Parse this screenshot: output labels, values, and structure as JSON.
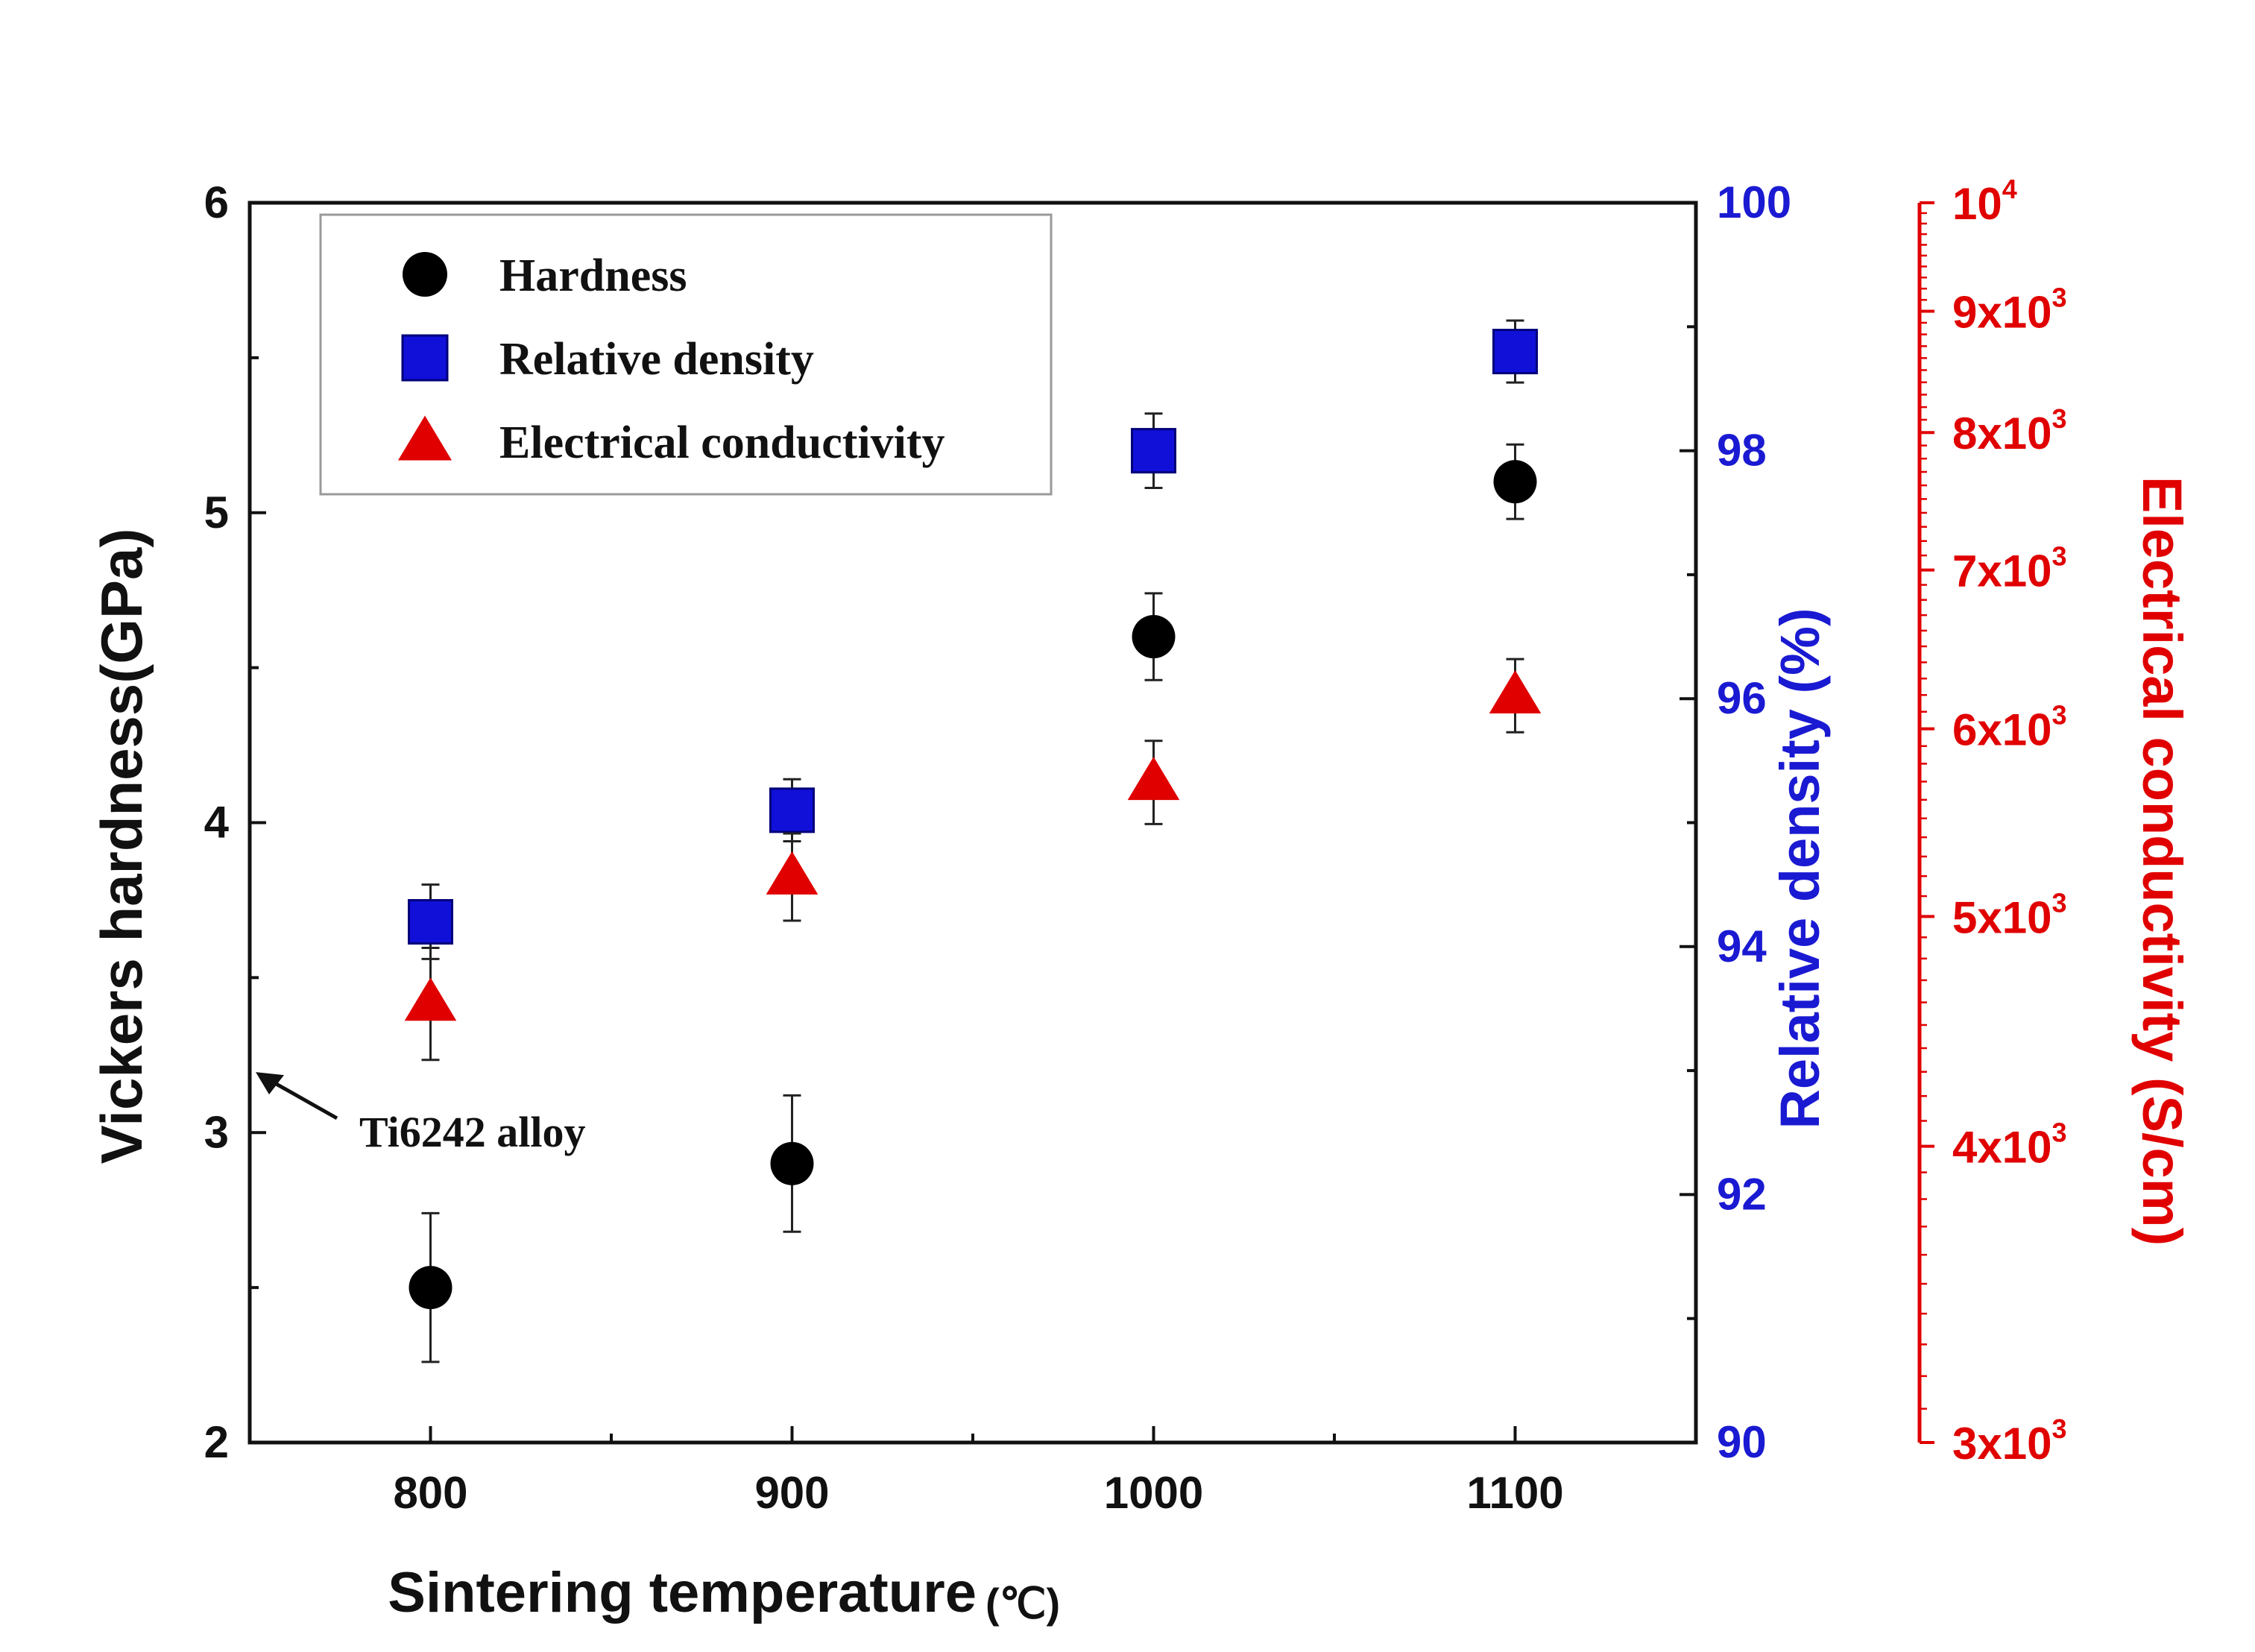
{
  "chart_data": {
    "type": "scatter",
    "title": "",
    "xlabel": "Sintering temperature",
    "xlabel_unit": "(℃)",
    "ylabel_left": "Vickers hardness(GPa)",
    "ylabel_right1": "Relative density (%)",
    "ylabel_right2": "Electrical conductivity (S/cm)",
    "x": [
      800,
      900,
      1000,
      1100
    ],
    "xlim": [
      750,
      1150
    ],
    "x_ticks": [
      "800",
      "900",
      "1000",
      "1100"
    ],
    "ylim_left": [
      2,
      6
    ],
    "y_ticks_left": [
      "2",
      "3",
      "4",
      "5",
      "6"
    ],
    "ylim_right1": [
      90,
      100
    ],
    "y_ticks_right1": [
      "90",
      "92",
      "94",
      "96",
      "98",
      "100"
    ],
    "ylim_right2": [
      3000,
      10000
    ],
    "scale_right2": "log",
    "y_ticks_right2": [
      {
        "base": "3x10",
        "exp": "3",
        "value": 3000
      },
      {
        "base": "4x10",
        "exp": "3",
        "value": 4000
      },
      {
        "base": "5x10",
        "exp": "3",
        "value": 5000
      },
      {
        "base": "6x10",
        "exp": "3",
        "value": 6000
      },
      {
        "base": "7x10",
        "exp": "3",
        "value": 7000
      },
      {
        "base": "8x10",
        "exp": "3",
        "value": 8000
      },
      {
        "base": "9x10",
        "exp": "3",
        "value": 9000
      },
      {
        "base": "10",
        "exp": "4",
        "value": 10000
      }
    ],
    "legend_position": "top-left",
    "series": [
      {
        "name": "Hardness",
        "axis": "left",
        "marker": "circle",
        "color": "#000000",
        "values": [
          2.5,
          2.9,
          4.6,
          5.1
        ],
        "errors": [
          0.24,
          0.22,
          0.14,
          0.12
        ]
      },
      {
        "name": "Relative density",
        "axis": "right1",
        "marker": "square",
        "color": "#1010d8",
        "values": [
          94.2,
          95.1,
          98.0,
          98.8
        ],
        "errors": [
          0.3,
          0.25,
          0.3,
          0.25
        ]
      },
      {
        "name": "Electrical conductivity",
        "axis": "right2",
        "marker": "triangle",
        "color": "#e00000",
        "values": [
          4600,
          5200,
          5700,
          6200
        ],
        "errors": [
          250,
          220,
          230,
          220
        ]
      }
    ],
    "annotation": "Ti6242 alloy",
    "annotation_value": 3.2
  }
}
